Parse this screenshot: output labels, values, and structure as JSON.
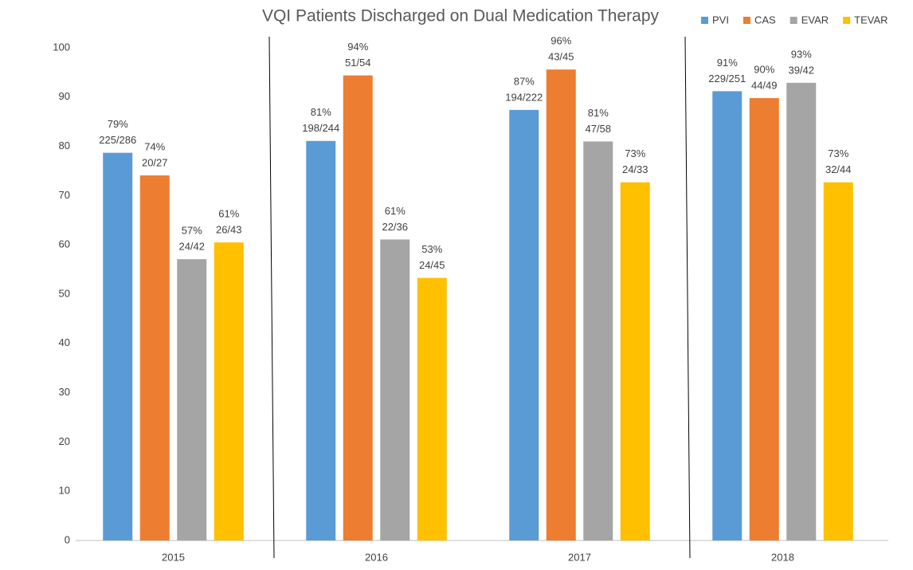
{
  "chart_data": {
    "type": "bar",
    "title": "VQI Patients Discharged on Dual Medication Therapy",
    "categories": [
      "2015",
      "2016",
      "2017",
      "2018"
    ],
    "series": [
      {
        "name": "PVI",
        "color": "#5b9bd5",
        "values": [
          78.7,
          81.1,
          87.4,
          91.2
        ],
        "value_labels": [
          "79%",
          "81%",
          "87%",
          "91%"
        ],
        "counts": [
          "225/286",
          "198/244",
          "194/222",
          "229/251"
        ]
      },
      {
        "name": "CAS",
        "color": "#ed7d31",
        "values": [
          74.1,
          94.4,
          95.6,
          89.8
        ],
        "value_labels": [
          "74%",
          "94%",
          "96%",
          "90%"
        ],
        "counts": [
          "20/27",
          "51/54",
          "43/45",
          "44/49"
        ]
      },
      {
        "name": "EVAR",
        "color": "#a5a5a5",
        "values": [
          57.1,
          61.1,
          81.0,
          92.9
        ],
        "value_labels": [
          "57%",
          "61%",
          "81%",
          "93%"
        ],
        "counts": [
          "24/42",
          "22/36",
          "47/58",
          "39/42"
        ]
      },
      {
        "name": "TEVAR",
        "color": "#ffc000",
        "values": [
          60.5,
          53.3,
          72.7,
          72.7
        ],
        "value_labels": [
          "61%",
          "53%",
          "73%",
          "73%"
        ],
        "counts": [
          "26/43",
          "24/45",
          "24/33",
          "32/44"
        ]
      }
    ],
    "ylim": [
      0,
      100
    ],
    "yticks": [
      0,
      10,
      20,
      30,
      40,
      50,
      60,
      70,
      80,
      90,
      100
    ],
    "grid": false,
    "legend": "top-right"
  }
}
